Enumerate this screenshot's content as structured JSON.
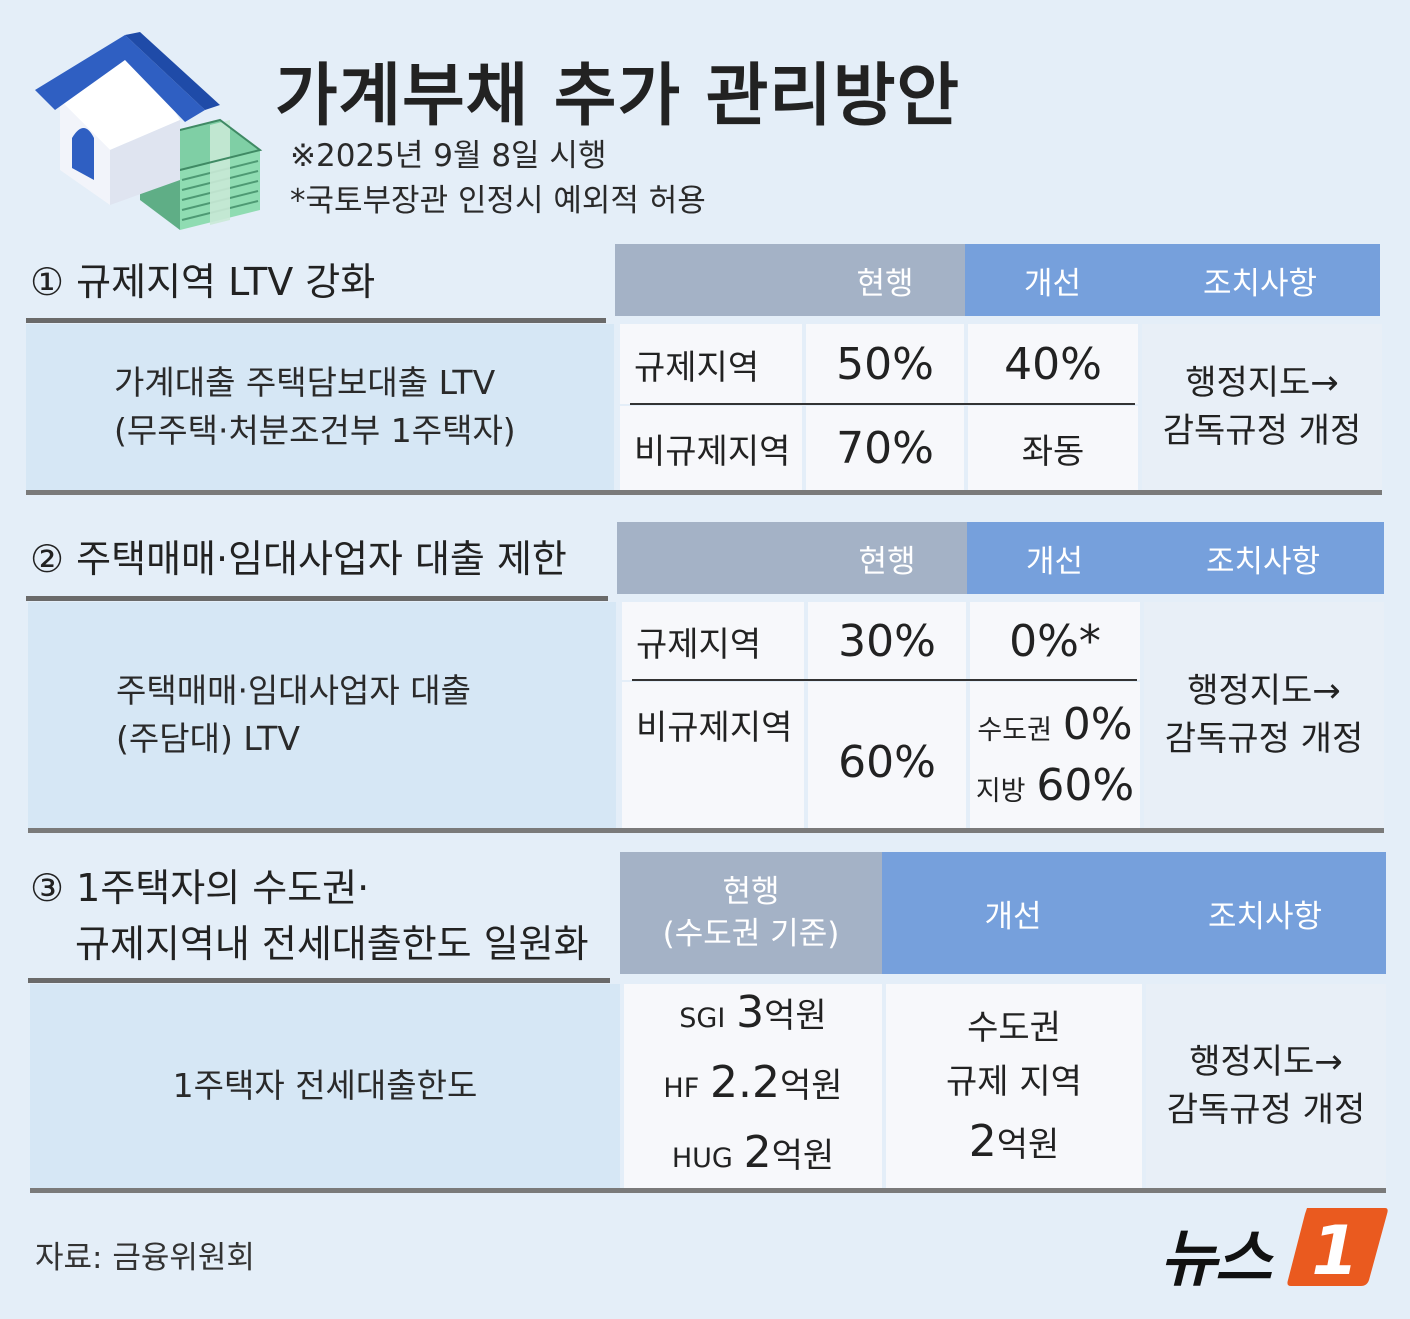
{
  "header": {
    "title": "가계부채 추가 관리방안",
    "note_date": "※2025년 9월 8일 시행",
    "note_exception": "*국토부장관 인정시 예외적 허용"
  },
  "columns": {
    "current": "현행",
    "improved": "개선",
    "action": "조치사항",
    "current_metro": "현행",
    "current_metro_sub": "(수도권 기준)"
  },
  "section1": {
    "title": "① 규제지역 LTV 강화",
    "label_line1": "가계대출 주택담보대출 LTV",
    "label_line2": "(무주택·처분조건부 1주택자)",
    "rows": [
      {
        "region": "규제지역",
        "current": "50%",
        "improved": "40%"
      },
      {
        "region": "비규제지역",
        "current": "70%",
        "improved": "좌동"
      }
    ],
    "action_line1": "행정지도→",
    "action_line2": "감독규정 개정"
  },
  "section2": {
    "title": "② 주택매매·임대사업자 대출 제한",
    "label_line1": "주택매매·임대사업자 대출",
    "label_line2": "(주담대) LTV",
    "row1": {
      "region": "규제지역",
      "current": "30%",
      "improved": "0%*"
    },
    "row2": {
      "region": "비규제지역",
      "current": "60%",
      "improved_metro_label": "수도권",
      "improved_metro_value": "0%",
      "improved_local_label": "지방",
      "improved_local_value": "60%"
    },
    "action_line1": "행정지도→",
    "action_line2": "감독규정 개정"
  },
  "section3": {
    "title_line1": "③ 1주택자의 수도권·",
    "title_line2": "규제지역내 전세대출한도 일원화",
    "label": "1주택자 전세대출한도",
    "current": [
      {
        "org": "SGI",
        "amount": "3",
        "unit": "억원"
      },
      {
        "org": "HF",
        "amount": "2.2",
        "unit": "억원"
      },
      {
        "org": "HUG",
        "amount": "2",
        "unit": "억원"
      }
    ],
    "improved_line1": "수도권",
    "improved_line2": "규제 지역",
    "improved_amount": "2",
    "improved_unit": "억원",
    "action_line1": "행정지도→",
    "action_line2": "감독규정 개정"
  },
  "footer": {
    "source": "자료: 금융위원회",
    "logo_text": "뉴스",
    "logo_number": "1"
  },
  "colors": {
    "background": "#e4eef8",
    "header_gray": "#a4b2c6",
    "header_blue": "#76a0dc",
    "label_bg": "#d6e7f5",
    "logo_orange": "#ea5a1f"
  }
}
